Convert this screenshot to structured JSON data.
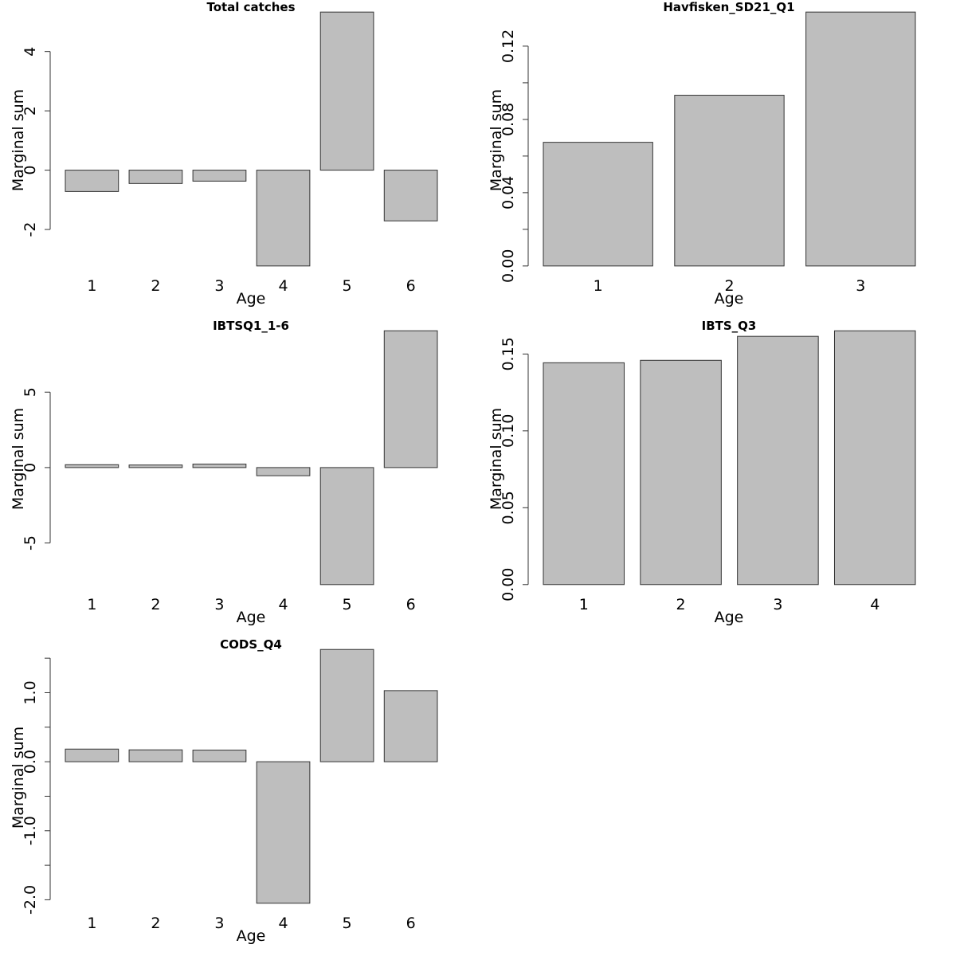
{
  "figure": {
    "layout": "3 rows x 2 columns",
    "bar_color": "#bebebe",
    "border_color": "#333333"
  },
  "chart_data": [
    {
      "type": "bar",
      "title": "Total catches",
      "xlabel": "Age",
      "ylabel": "Marginal sum",
      "categories": [
        "1",
        "2",
        "3",
        "4",
        "5",
        "6"
      ],
      "values": [
        -0.72,
        -0.45,
        -0.37,
        -3.23,
        5.33,
        -1.71
      ],
      "ylim": [
        -3.57,
        5.67
      ],
      "y_ticks": [
        -2,
        0,
        2,
        4
      ],
      "y_tick_labels": [
        "-2",
        "0",
        "2",
        "4"
      ],
      "grid": false,
      "legend": "none"
    },
    {
      "type": "bar",
      "title": "Havfisken_SD21_Q1",
      "xlabel": "Age",
      "ylabel": "Marginal sum",
      "categories": [
        "1",
        "2",
        "3"
      ],
      "values": [
        0.0675,
        0.0932,
        0.1386
      ],
      "ylim": [
        -0.0055,
        0.1441
      ],
      "y_ticks": [
        0.0,
        0.02,
        0.04,
        0.06,
        0.08,
        0.1,
        0.12
      ],
      "y_tick_labels": [
        "0.00",
        "",
        "0.04",
        "",
        "0.08",
        "",
        "0.12"
      ],
      "grid": false,
      "legend": "none"
    },
    {
      "type": "bar",
      "title": "IBTSQ1_1-6",
      "xlabel": "Age",
      "ylabel": "Marginal sum",
      "categories": [
        "1",
        "2",
        "3",
        "4",
        "5",
        "6"
      ],
      "values": [
        0.19,
        0.17,
        0.23,
        -0.54,
        -7.76,
        9.07
      ],
      "ylim": [
        -8.43,
        9.74
      ],
      "y_ticks": [
        -5,
        0,
        5
      ],
      "y_tick_labels": [
        "-5",
        "0",
        "5"
      ],
      "grid": false,
      "legend": "none"
    },
    {
      "type": "bar",
      "title": "IBTS_Q3",
      "xlabel": "Age",
      "ylabel": "Marginal sum",
      "categories": [
        "1",
        "2",
        "3",
        "4"
      ],
      "values": [
        0.1443,
        0.1459,
        0.1615,
        0.1651
      ],
      "ylim": [
        -0.0066,
        0.1717
      ],
      "y_ticks": [
        0.0,
        0.05,
        0.1,
        0.15
      ],
      "y_tick_labels": [
        "0.00",
        "0.05",
        "0.10",
        "0.15"
      ],
      "grid": false,
      "legend": "none"
    },
    {
      "type": "bar",
      "title": "CODS_Q4",
      "xlabel": "Age",
      "ylabel": "Marginal sum",
      "categories": [
        "1",
        "2",
        "3",
        "4",
        "5",
        "6"
      ],
      "values": [
        0.183,
        0.172,
        0.168,
        -2.05,
        1.626,
        1.03
      ],
      "ylim": [
        -2.197,
        1.773
      ],
      "y_ticks": [
        -2.0,
        -1.5,
        -1.0,
        -0.5,
        0.0,
        0.5,
        1.0,
        1.5
      ],
      "y_tick_labels": [
        "-2.0",
        "",
        "-1.0",
        "",
        "0.0",
        "",
        "1.0",
        ""
      ],
      "grid": false,
      "legend": "none"
    }
  ]
}
